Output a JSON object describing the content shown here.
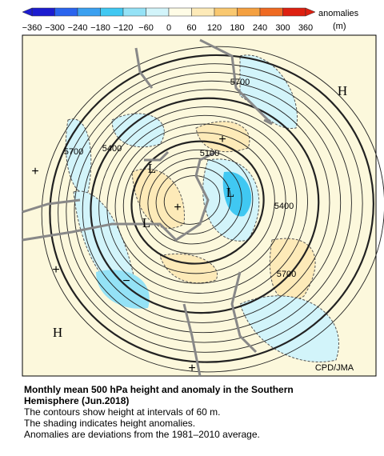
{
  "colorbar": {
    "label": "anomalies",
    "unit": "(m)",
    "ticks": [
      "−360",
      "−300",
      "−240",
      "−180",
      "−120",
      "−60",
      "0",
      "60",
      "120",
      "180",
      "240",
      "300",
      "360"
    ],
    "colors": [
      "#1c1cd0",
      "#2a64ee",
      "#3aa0f0",
      "#40c8f2",
      "#94e2f6",
      "#d2f4fa",
      "#fffce6",
      "#fdeab8",
      "#f9c870",
      "#f4a040",
      "#ef6a22",
      "#de2010"
    ]
  },
  "map": {
    "contour_labels": [
      "5700",
      "5700",
      "5400",
      "5100",
      "5400",
      "5700"
    ],
    "highs": [
      "H",
      "H"
    ],
    "lows": [
      "L",
      "L",
      "L"
    ],
    "plus_marks": [
      "+",
      "+",
      "+",
      "+",
      "+"
    ],
    "minus_marks": [
      "−"
    ],
    "credit": "CPD/JMA"
  },
  "caption": {
    "title": [
      "Monthly mean 500 hPa height and anomaly in the Southern",
      "Hemisphere (Jun.2018)"
    ],
    "lines": [
      "The contours show height at intervals of 60 m.",
      "The shading indicates height anomalies.",
      "Anomalies are deviations from the 1981–2010 average."
    ]
  }
}
